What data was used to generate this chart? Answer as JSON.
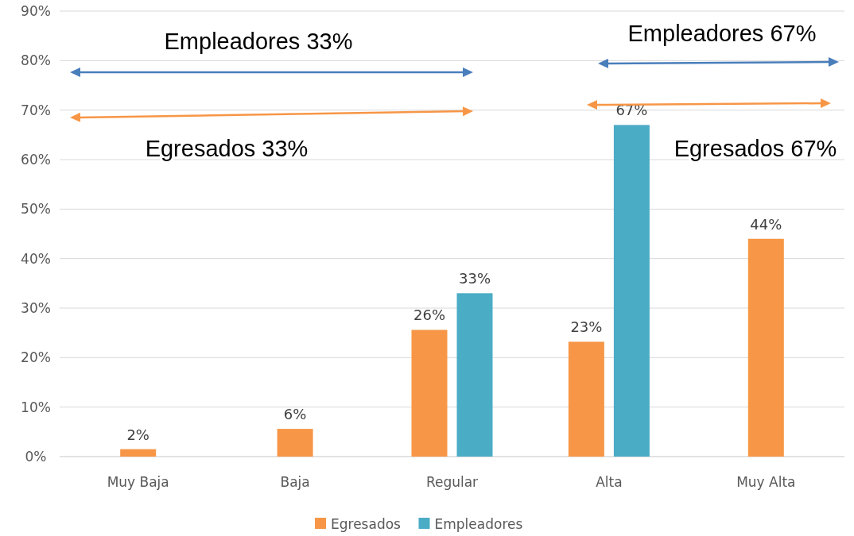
{
  "chart_data": {
    "type": "bar",
    "categories": [
      "Muy Baja",
      "Baja",
      "Regular",
      "Alta",
      "Muy Alta"
    ],
    "series": [
      {
        "name": "Egresados",
        "color": "#f79646",
        "values": [
          1.5,
          5.6,
          25.6,
          23.2,
          44
        ],
        "value_labels": [
          "2%",
          "6%",
          "26%",
          "23%",
          "44%"
        ]
      },
      {
        "name": "Empleadores",
        "color": "#4bacc6",
        "values": [
          null,
          null,
          33,
          67,
          null
        ],
        "value_labels": [
          null,
          null,
          "33%",
          "67%",
          null
        ]
      }
    ],
    "ylim": [
      0,
      90
    ],
    "yticks": [
      {
        "value": 0,
        "label": "0%"
      },
      {
        "value": 10,
        "label": "10%"
      },
      {
        "value": 20,
        "label": "20%"
      },
      {
        "value": 30,
        "label": "30%"
      },
      {
        "value": 40,
        "label": "40%"
      },
      {
        "value": 50,
        "label": "50%"
      },
      {
        "value": 60,
        "label": "60%"
      },
      {
        "value": 70,
        "label": "70%"
      },
      {
        "value": 80,
        "label": "80%"
      },
      {
        "value": 90,
        "label": "90%"
      }
    ],
    "grid": "y",
    "legend": "bottom",
    "annotations": [
      "Empleadores 33%",
      "Egresados 33%",
      "Empleadores 67%",
      "Egresados 67%"
    ]
  }
}
